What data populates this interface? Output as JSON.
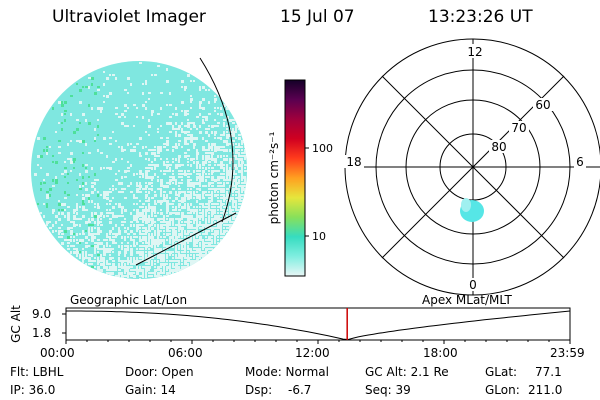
{
  "header": {
    "title": "Ultraviolet Imager",
    "date": "15 Jul 07",
    "time": "13:23:26 UT"
  },
  "colors": {
    "disk_main": "#7fe7e0",
    "disk_pale": "#dff6f4",
    "disk_green": "#4ee09a",
    "auroral_spot": "#56e6e6",
    "time_marker": "#cc0000"
  },
  "colorbar": {
    "label": "photon cm⁻²s⁻¹",
    "ticks": [
      "100",
      "10"
    ],
    "scale": "log",
    "stops": [
      "#e8f6f6",
      "#80eee0",
      "#36dcc0",
      "#88e05a",
      "#e6e63c",
      "#ffa020",
      "#ff3c1c",
      "#d00020",
      "#a0003c",
      "#5a0050",
      "#140028"
    ]
  },
  "polar_plot": {
    "hours": {
      "top": "12",
      "left": "18",
      "right": "6",
      "bottom": "0"
    },
    "latitudes": [
      "60",
      "70",
      "80"
    ]
  },
  "timeline": {
    "left_label": "Geographic Lat/Lon",
    "right_label": "Apex MLat/MLT",
    "axis_label": "GC Alt",
    "y_ticks": [
      "9.0",
      "1.8"
    ],
    "x_ticks": [
      "00:00",
      "06:00",
      "12:00",
      "18:00",
      "23:59"
    ],
    "current_time_hours": 13.39
  },
  "info": {
    "flt": "Flt: LBHL",
    "ip": "IP: 36.0",
    "door": "Door: Open",
    "gain": "Gain: 14",
    "mode": "Mode: Normal",
    "dsp": "Dsp:",
    "dsp_value": "-6.7",
    "gc_alt": "GC Alt: 2.1 Re",
    "seq": "Seq: 39",
    "glat": "GLat:",
    "glat_value": "77.1",
    "glon": "GLon:",
    "glon_value": "211.0"
  }
}
